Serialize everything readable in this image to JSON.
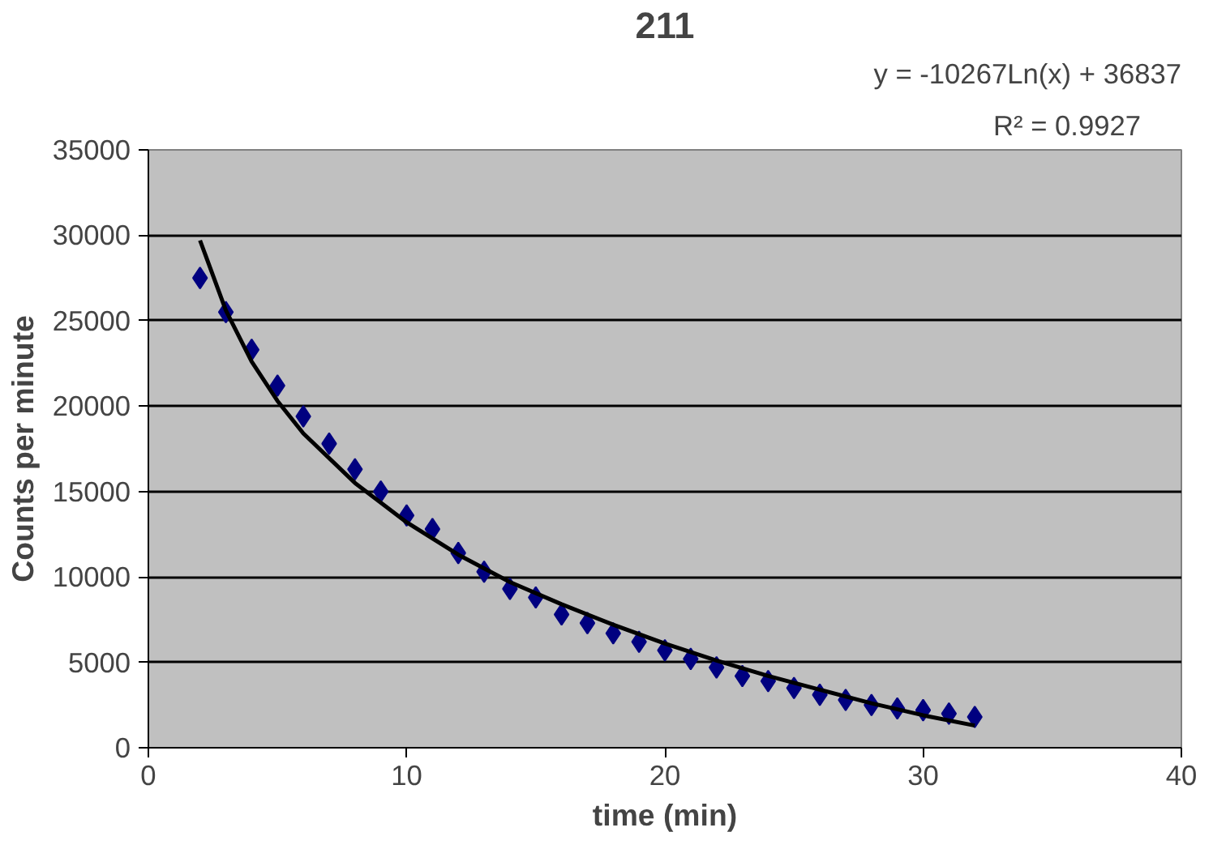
{
  "chart_data": {
    "type": "scatter",
    "title": "211",
    "xlabel": "time (min)",
    "ylabel": "Counts per minute",
    "annotations": [
      "y = -10267Ln(x) + 36837",
      "R² = 0.9927"
    ],
    "xlim": [
      0,
      40
    ],
    "xticks": [
      0,
      10,
      20,
      30,
      40
    ],
    "ylim": [
      0,
      35000
    ],
    "yticks": [
      0,
      5000,
      10000,
      15000,
      20000,
      25000,
      30000,
      35000
    ],
    "grid": "y",
    "marker": "diamond",
    "series": [
      {
        "color": "#000080",
        "x": [
          2,
          3,
          4,
          5,
          6,
          7,
          8,
          9,
          10,
          11,
          12,
          13,
          14,
          15,
          16,
          17,
          18,
          19,
          20,
          21,
          22,
          23,
          24,
          25,
          26,
          27,
          28,
          29,
          30,
          31,
          32
        ],
        "values": [
          27500,
          25500,
          23300,
          21200,
          19400,
          17800,
          16300,
          15000,
          13600,
          12800,
          11400,
          10300,
          9300,
          8800,
          7800,
          7300,
          6700,
          6200,
          5700,
          5200,
          4700,
          4200,
          3900,
          3500,
          3100,
          2800,
          2500,
          2300,
          2200,
          2000,
          1800
        ]
      },
      {
        "type": "line",
        "color": "#000000",
        "line_style": "solid",
        "marker": "none",
        "x": [
          2,
          3,
          4,
          5,
          6,
          8,
          10,
          12,
          14,
          16,
          18,
          20,
          22,
          24,
          26,
          28,
          30,
          32
        ],
        "values": [
          29700,
          25600,
          22600,
          20300,
          18400,
          15500,
          13200,
          11300,
          9700,
          8400,
          7200,
          6100,
          5100,
          4200,
          3400,
          2600,
          1900,
          1300
        ]
      }
    ]
  }
}
